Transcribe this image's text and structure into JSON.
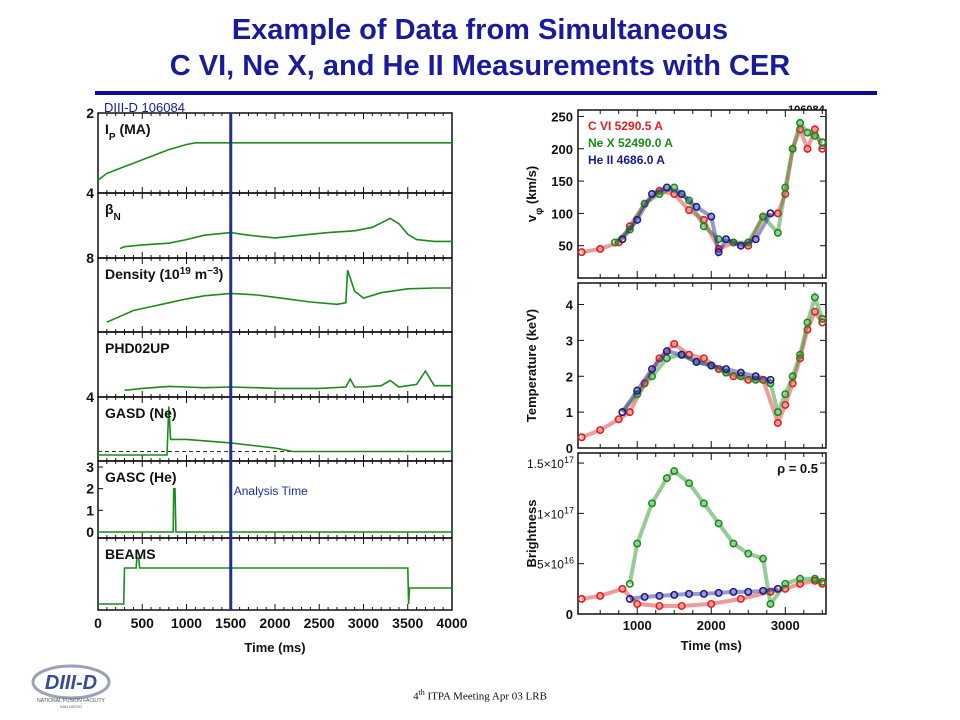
{
  "slide": {
    "title_line1": "Example of Data from Simultaneous",
    "title_line2": "C VI, Ne X, and He  II Measurements with CER",
    "shot_label_left": "DIII-D  106084",
    "shot_label_right": "106084",
    "footer": "ITPA Meeting  Apr 03  LRB",
    "footer_sup": "th",
    "footer_num": "4",
    "logo_text": "DIII-D",
    "logo_sub": "NATIONAL FUSION FACILITY",
    "logo_city": "SAN DIEGO",
    "colors": {
      "title": "#1a1a9c",
      "green": "#1a8c1a",
      "red": "#e02020",
      "blue": "#1a1a8c",
      "cursor": "#1c2ea0"
    }
  },
  "chart_data": [
    {
      "type": "line",
      "name": "timetraces",
      "xlabel": "Time (ms)",
      "xlim": [
        0,
        4000
      ],
      "xticks": [
        0,
        500,
        1000,
        1500,
        2000,
        2500,
        3000,
        3500,
        4000
      ],
      "cursor": {
        "x": 1500,
        "label": "Analysis Time"
      },
      "panels": [
        {
          "label": "I",
          "sub": "P",
          "suffix": " (MA)",
          "ylim": [
            0,
            2
          ],
          "ticks": [
            {
              "v": 0,
              "t": "4"
            },
            {
              "v": 2,
              "t": "2"
            }
          ],
          "series": [
            {
              "x": [
                0,
                100,
                200,
                400,
                600,
                800,
                1000,
                1100,
                1500,
                2000,
                3000,
                3500,
                4000
              ],
              "y": [
                0.2,
                0.4,
                0.5,
                0.7,
                0.9,
                1.1,
                1.25,
                1.3,
                1.3,
                1.3,
                1.3,
                1.3,
                1.3
              ]
            }
          ]
        },
        {
          "label": "β",
          "sub": "N",
          "suffix": "",
          "ylim": [
            0,
            3
          ],
          "ticks": [
            {
              "v": 0,
              "t": "8"
            }
          ],
          "series": [
            {
              "x": [
                250,
                300,
                500,
                800,
                1000,
                1200,
                1500,
                1700,
                2000,
                2300,
                2600,
                2900,
                3100,
                3300,
                3400,
                3500,
                3600,
                3800,
                4000
              ],
              "y": [
                0.2,
                0.3,
                0.4,
                0.5,
                0.7,
                0.95,
                1.1,
                0.95,
                0.8,
                0.95,
                1.1,
                1.2,
                1.4,
                1.9,
                1.6,
                1.0,
                0.7,
                0.6,
                0.6
              ]
            }
          ]
        },
        {
          "label": "Density (10",
          "sup": "19",
          "suffix": " m",
          "sup2": "−3",
          "tail": ")",
          "ylim": [
            0,
            8
          ],
          "ticks": [],
          "series": [
            {
              "x": [
                100,
                200,
                400,
                600,
                800,
                1000,
                1200,
                1500,
                1800,
                2000,
                2400,
                2700,
                2800,
                2820,
                2900,
                3000,
                3200,
                3500,
                3800,
                4000
              ],
              "y": [
                0.5,
                1.0,
                2.0,
                2.5,
                3.0,
                3.5,
                3.9,
                4.2,
                4.0,
                3.7,
                3.1,
                2.8,
                3.0,
                7.2,
                4.5,
                3.6,
                4.3,
                4.8,
                4.9,
                4.9
              ]
            }
          ]
        },
        {
          "label": "PHD02UP",
          "ylim": [
            0,
            4
          ],
          "ticks": [
            {
              "v": 0,
              "t": "4"
            }
          ],
          "series": [
            {
              "x": [
                300,
                500,
                800,
                1000,
                1200,
                1500,
                1800,
                2000,
                2500,
                2800,
                2850,
                2900,
                3000,
                3200,
                3300,
                3400,
                3500,
                3600,
                3700,
                3800,
                3900,
                4000
              ],
              "y": [
                0.05,
                0.2,
                0.35,
                0.3,
                0.25,
                0.3,
                0.25,
                0.2,
                0.2,
                0.3,
                0.9,
                0.3,
                0.3,
                0.4,
                0.8,
                0.3,
                0.4,
                0.5,
                1.5,
                0.4,
                0.4,
                0.4
              ]
            }
          ]
        },
        {
          "label": "GASD (Ne)",
          "ylim": [
            0,
            3
          ],
          "ticks": [],
          "series": [
            {
              "x": [
                0,
                780,
                800,
                820,
                1000,
                1500,
                2000,
                2200,
                2500,
                3000,
                4000
              ],
              "y": [
                0,
                0,
                2.8,
                0.9,
                0.9,
                0.7,
                0.4,
                0.2,
                0.2,
                0.2,
                0.2
              ]
            }
          ]
        },
        {
          "label": "GASC (He)",
          "ylim": [
            0,
            3
          ],
          "ticks": [
            {
              "v": 0,
              "t": "0"
            },
            {
              "v": 1,
              "t": "1"
            },
            {
              "v": 2,
              "t": "2"
            },
            {
              "v": 3,
              "t": "3"
            }
          ],
          "series": [
            {
              "x": [
                0,
                850,
                855,
                870,
                880,
                4000
              ],
              "y": [
                0,
                0,
                2.0,
                2.0,
                0,
                0
              ]
            }
          ]
        },
        {
          "label": "BEAMS",
          "ylim": [
            0,
            3
          ],
          "ticks": [],
          "series": [
            {
              "x": [
                0,
                290,
                300,
                430,
                440,
                460,
                470,
                3500,
                3510,
                3520,
                4000
              ],
              "y": [
                0,
                0,
                1.8,
                1.8,
                2.3,
                2.3,
                1.8,
                1.8,
                0,
                0.8,
                0.8
              ]
            }
          ]
        }
      ]
    },
    {
      "type": "scatter",
      "name": "cer",
      "xlabel": "Time (ms)",
      "xlim": [
        200,
        3550
      ],
      "xticks": [
        1000,
        2000,
        3000
      ],
      "panels": [
        {
          "ylabel": "v",
          "ysub": "φ",
          "yunit": " (km/s)",
          "ylim": [
            0,
            260
          ],
          "yticks": [
            {
              "v": 50,
              "t": "50"
            },
            {
              "v": 100,
              "t": "100"
            },
            {
              "v": 150,
              "t": "150"
            },
            {
              "v": 200,
              "t": "200"
            },
            {
              "v": 250,
              "t": "250"
            }
          ],
          "legend": [
            "C VI 5290.5 A",
            "Ne X 52490.0 A",
            "He II 4686.0 A"
          ],
          "series": [
            {
              "name": "C VI",
              "x": [
                250,
                500,
                750,
                900,
                1100,
                1300,
                1500,
                1700,
                1900,
                2100,
                2300,
                2500,
                2700,
                2900,
                3000,
                3100,
                3200,
                3300,
                3400,
                3500
              ],
              "y": [
                40,
                45,
                55,
                80,
                115,
                135,
                130,
                105,
                90,
                45,
                55,
                50,
                95,
                100,
                130,
                200,
                230,
                200,
                230,
                200
              ]
            },
            {
              "name": "Ne X",
              "x": [
                700,
                900,
                1100,
                1300,
                1500,
                1700,
                1900,
                2100,
                2300,
                2500,
                2700,
                2900,
                3000,
                3100,
                3200,
                3300,
                3400,
                3500
              ],
              "y": [
                55,
                75,
                115,
                130,
                140,
                120,
                80,
                60,
                55,
                55,
                95,
                70,
                140,
                200,
                240,
                225,
                220,
                210
              ]
            },
            {
              "name": "He II",
              "x": [
                800,
                1000,
                1200,
                1400,
                1600,
                1800,
                2000,
                2100,
                2200,
                2400,
                2600,
                2800
              ],
              "y": [
                60,
                90,
                130,
                140,
                130,
                110,
                95,
                40,
                60,
                50,
                60,
                100
              ]
            }
          ]
        },
        {
          "ylabel": "Temperature (keV)",
          "ylim": [
            0,
            4.6
          ],
          "yticks": [
            {
              "v": 0,
              "t": "0"
            },
            {
              "v": 1,
              "t": "1"
            },
            {
              "v": 2,
              "t": "2"
            },
            {
              "v": 3,
              "t": "3"
            },
            {
              "v": 4,
              "t": "4"
            }
          ],
          "series": [
            {
              "name": "C VI",
              "x": [
                250,
                500,
                750,
                900,
                1100,
                1300,
                1500,
                1700,
                1900,
                2100,
                2300,
                2500,
                2700,
                2900,
                3000,
                3100,
                3200,
                3300,
                3400,
                3500
              ],
              "y": [
                0.3,
                0.5,
                0.8,
                1.0,
                1.8,
                2.5,
                2.9,
                2.6,
                2.5,
                2.2,
                2.0,
                1.9,
                1.9,
                0.7,
                1.2,
                1.8,
                2.5,
                3.3,
                3.8,
                3.5
              ]
            },
            {
              "name": "Ne X",
              "x": [
                800,
                1000,
                1200,
                1400,
                1600,
                1800,
                2000,
                2200,
                2400,
                2600,
                2800,
                2900,
                3000,
                3100,
                3200,
                3300,
                3400,
                3500
              ],
              "y": [
                1.0,
                1.5,
                2.0,
                2.5,
                2.6,
                2.4,
                2.3,
                2.1,
                2.0,
                1.9,
                1.8,
                1.0,
                1.5,
                2.0,
                2.6,
                3.5,
                4.2,
                3.6
              ]
            },
            {
              "name": "He II",
              "x": [
                800,
                1000,
                1200,
                1400,
                1600,
                1800,
                2000,
                2200,
                2400,
                2600,
                2800
              ],
              "y": [
                1.0,
                1.6,
                2.2,
                2.7,
                2.6,
                2.4,
                2.3,
                2.2,
                2.1,
                2.0,
                1.9
              ]
            }
          ]
        },
        {
          "ylabel": "Brightness",
          "ylim": [
            0,
            1.6e+17
          ],
          "yticks": [
            {
              "v": 0,
              "t": "0",
              "html": false
            },
            {
              "v": 5e+16,
              "m": "5×10",
              "e": "16"
            },
            {
              "v": 1e+17,
              "m": "1×10",
              "e": "17"
            },
            {
              "v": 1.5e+17,
              "m": "1.5×10",
              "e": "17"
            }
          ],
          "annotation": "ρ = 0.5",
          "series": [
            {
              "name": "C VI",
              "x": [
                250,
                500,
                800,
                1000,
                1300,
                1600,
                2000,
                2400,
                2800,
                3000,
                3200,
                3400,
                3500
              ],
              "y": [
                1.5e+16,
                1.8e+16,
                2.5e+16,
                1e+16,
                8000000000000000.0,
                8000000000000000.0,
                1e+16,
                1.5e+16,
                2.2e+16,
                2.5e+16,
                3e+16,
                3.3e+16,
                3e+16
              ]
            },
            {
              "name": "Ne X",
              "x": [
                900,
                1000,
                1200,
                1400,
                1500,
                1700,
                1900,
                2100,
                2300,
                2500,
                2700,
                2800,
                3000,
                3200,
                3400,
                3500
              ],
              "y": [
                3e+16,
                7e+16,
                1.1e+17,
                1.35e+17,
                1.42e+17,
                1.3e+17,
                1.1e+17,
                9e+16,
                7e+16,
                6e+16,
                5.5e+16,
                1e+16,
                3e+16,
                3.5e+16,
                3.5e+16,
                3.2e+16
              ]
            },
            {
              "name": "He II",
              "x": [
                900,
                1100,
                1300,
                1500,
                1700,
                1900,
                2100,
                2300,
                2500,
                2700,
                2900
              ],
              "y": [
                1.5e+16,
                1.7e+16,
                1.8e+16,
                1.9e+16,
                2e+16,
                2e+16,
                2.1e+16,
                2.2e+16,
                2.2e+16,
                2.3e+16,
                2.5e+16
              ]
            }
          ]
        }
      ]
    }
  ]
}
